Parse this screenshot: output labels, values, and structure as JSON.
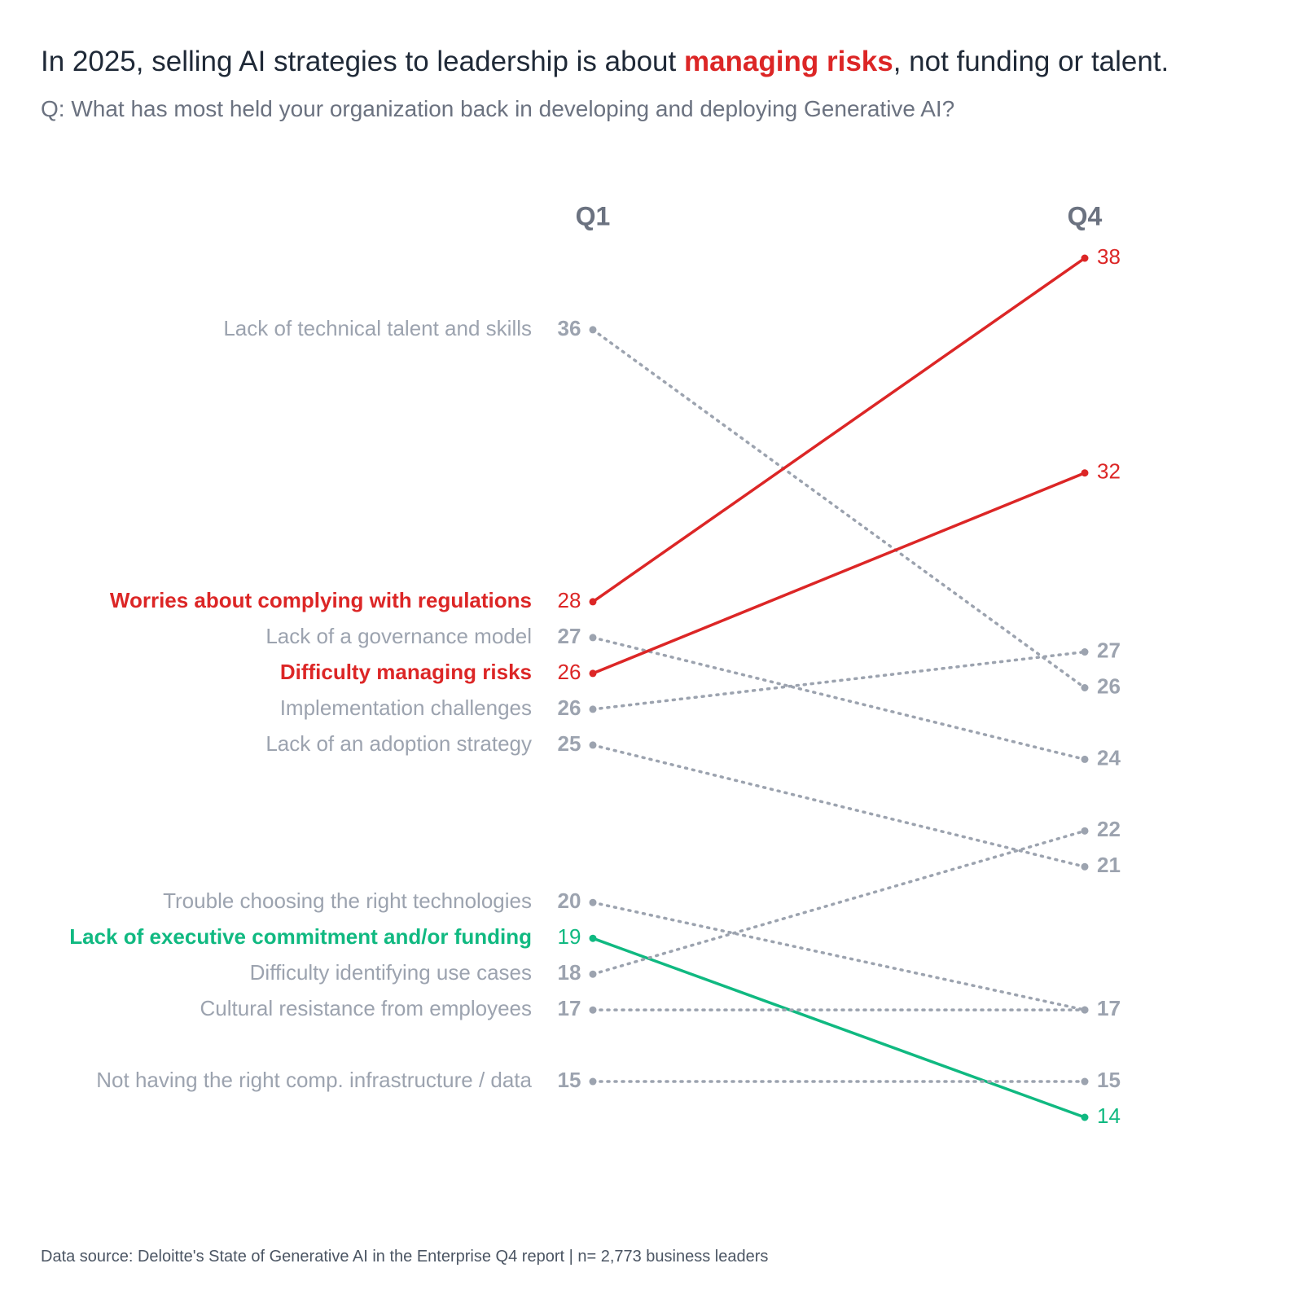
{
  "chart_data": {
    "type": "slope",
    "title_prefix": "In 2025, selling AI strategies to leadership is about ",
    "title_highlight": "managing risks",
    "title_highlight_color": "#dc2626",
    "title_suffix": ", not funding or talent.",
    "subtitle": "Q: What has most held your organization back in developing and deploying Generative AI?",
    "categories": [
      "Q1",
      "Q4"
    ],
    "series": [
      {
        "name": "Lack of technical talent and skills",
        "values": [
          36,
          26
        ],
        "color": "#9ca3af",
        "style": "dotted",
        "highlight": false
      },
      {
        "name": "Worries about complying with regulations",
        "values": [
          28,
          38
        ],
        "color": "#dc2626",
        "style": "solid",
        "highlight": true
      },
      {
        "name": "Lack of a governance model",
        "values": [
          27,
          24
        ],
        "color": "#9ca3af",
        "style": "dotted",
        "highlight": false
      },
      {
        "name": "Difficulty managing risks",
        "values": [
          26,
          32
        ],
        "color": "#dc2626",
        "style": "solid",
        "highlight": true
      },
      {
        "name": "Implementation challenges",
        "values": [
          26,
          27
        ],
        "color": "#9ca3af",
        "style": "dotted",
        "highlight": false
      },
      {
        "name": "Lack of an adoption strategy",
        "values": [
          25,
          21
        ],
        "color": "#9ca3af",
        "style": "dotted",
        "highlight": false
      },
      {
        "name": "Trouble choosing the right technologies",
        "values": [
          20,
          17
        ],
        "color": "#9ca3af",
        "style": "dotted",
        "highlight": false
      },
      {
        "name": "Lack of executive commitment and/or funding",
        "values": [
          19,
          14
        ],
        "color": "#10b981",
        "style": "solid",
        "highlight": true
      },
      {
        "name": "Difficulty identifying use cases",
        "values": [
          18,
          22
        ],
        "color": "#9ca3af",
        "style": "dotted",
        "highlight": false
      },
      {
        "name": "Cultural resistance from employees",
        "values": [
          17,
          17
        ],
        "color": "#9ca3af",
        "style": "dotted",
        "highlight": false
      },
      {
        "name": "Not having the right comp. infrastructure / data",
        "values": [
          15,
          15
        ],
        "color": "#9ca3af",
        "style": "dotted",
        "highlight": false
      }
    ],
    "source": "Data source: Deloitte's State of Generative AI in the Enterprise Q4 report | n= 2,773 business leaders"
  }
}
